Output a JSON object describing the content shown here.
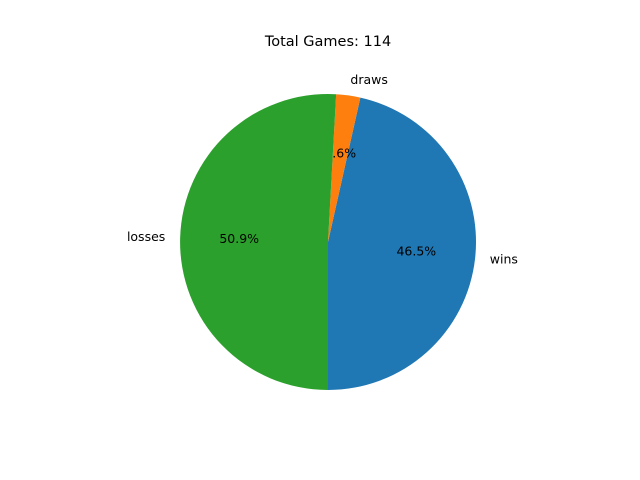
{
  "chart_data": {
    "type": "pie",
    "title": "Total Games: 114",
    "start_angle_deg": 270,
    "direction": "counterclockwise",
    "slices": [
      {
        "label": "wins",
        "value": 53,
        "pct_label": "46.5%",
        "color": "#1f77b4"
      },
      {
        "label": "draws",
        "value": 3,
        "pct_label": "2.6%",
        "color": "#ff7f0e"
      },
      {
        "label": "losses",
        "value": 58,
        "pct_label": "50.9%",
        "color": "#2ca02c"
      }
    ]
  }
}
